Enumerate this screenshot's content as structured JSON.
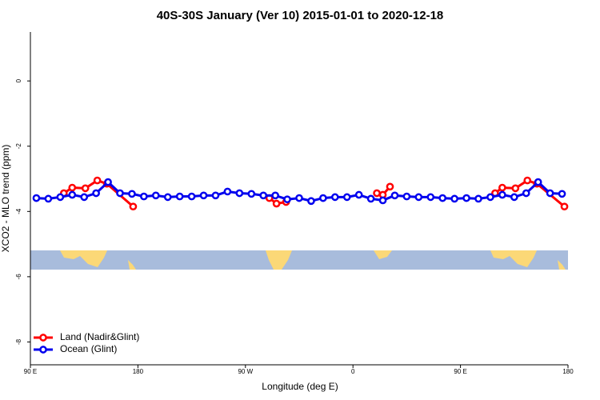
{
  "chart_data": {
    "type": "line",
    "title": "40S-30S January (Ver 10)   2015-01-01 to 2020-12-18",
    "xlabel": "Longitude (deg E)",
    "ylabel": "XCO2 - MLO trend (ppm)",
    "xlim": [
      -270,
      180
    ],
    "xticks": [
      {
        "value": -270,
        "label": "90 E"
      },
      {
        "value": -180,
        "label": "180"
      },
      {
        "value": -90,
        "label": "90 W"
      },
      0,
      {
        "value": 90,
        "label": "90 E"
      },
      {
        "value": 180,
        "label": "180"
      }
    ],
    "ylim": [
      -8.7,
      1.5
    ],
    "yticks": [
      0,
      -2,
      -4,
      -6,
      -8
    ],
    "legend": "bottom-left",
    "series": [
      {
        "name": "Land (Nadir&Glint)",
        "color": "#ff0000",
        "x": [
          -242,
          -235,
          -224,
          -214,
          -206,
          -184,
          null,
          -70,
          -64,
          -56,
          null,
          20,
          25,
          31,
          null,
          119,
          125,
          136,
          146,
          154,
          177
        ],
        "values": [
          -3.44,
          -3.27,
          -3.29,
          -3.05,
          -3.15,
          -3.85,
          null,
          -3.59,
          -3.76,
          -3.71,
          null,
          -3.44,
          -3.49,
          -3.24,
          null,
          -3.44,
          -3.27,
          -3.29,
          -3.05,
          -3.15,
          -3.85
        ]
      },
      {
        "name": "Ocean (Glint)",
        "color": "#0000ee",
        "x": [
          -265,
          -255,
          -245,
          -235,
          -225,
          -215,
          -205,
          -195,
          -185,
          -175,
          -165,
          -155,
          -145,
          -135,
          -125,
          -115,
          -105,
          -95,
          -85,
          -75,
          -65,
          -55,
          -45,
          -35,
          -25,
          -15,
          -5,
          5,
          15,
          25,
          35,
          45,
          55,
          65,
          75,
          85,
          95,
          105,
          115,
          125,
          135,
          145,
          155,
          165,
          175
        ],
        "values": [
          -3.59,
          -3.61,
          -3.56,
          -3.49,
          -3.56,
          -3.44,
          -3.1,
          -3.44,
          -3.46,
          -3.54,
          -3.51,
          -3.56,
          -3.54,
          -3.54,
          -3.51,
          -3.51,
          -3.39,
          -3.44,
          -3.46,
          -3.51,
          -3.51,
          -3.63,
          -3.59,
          -3.68,
          -3.59,
          -3.56,
          -3.56,
          -3.49,
          -3.61,
          -3.66,
          -3.51,
          -3.54,
          -3.56,
          -3.56,
          -3.59,
          -3.61,
          -3.59,
          -3.61,
          -3.56,
          -3.49,
          -3.56,
          -3.44,
          -3.1,
          -3.44,
          -3.46
        ]
      }
    ]
  }
}
